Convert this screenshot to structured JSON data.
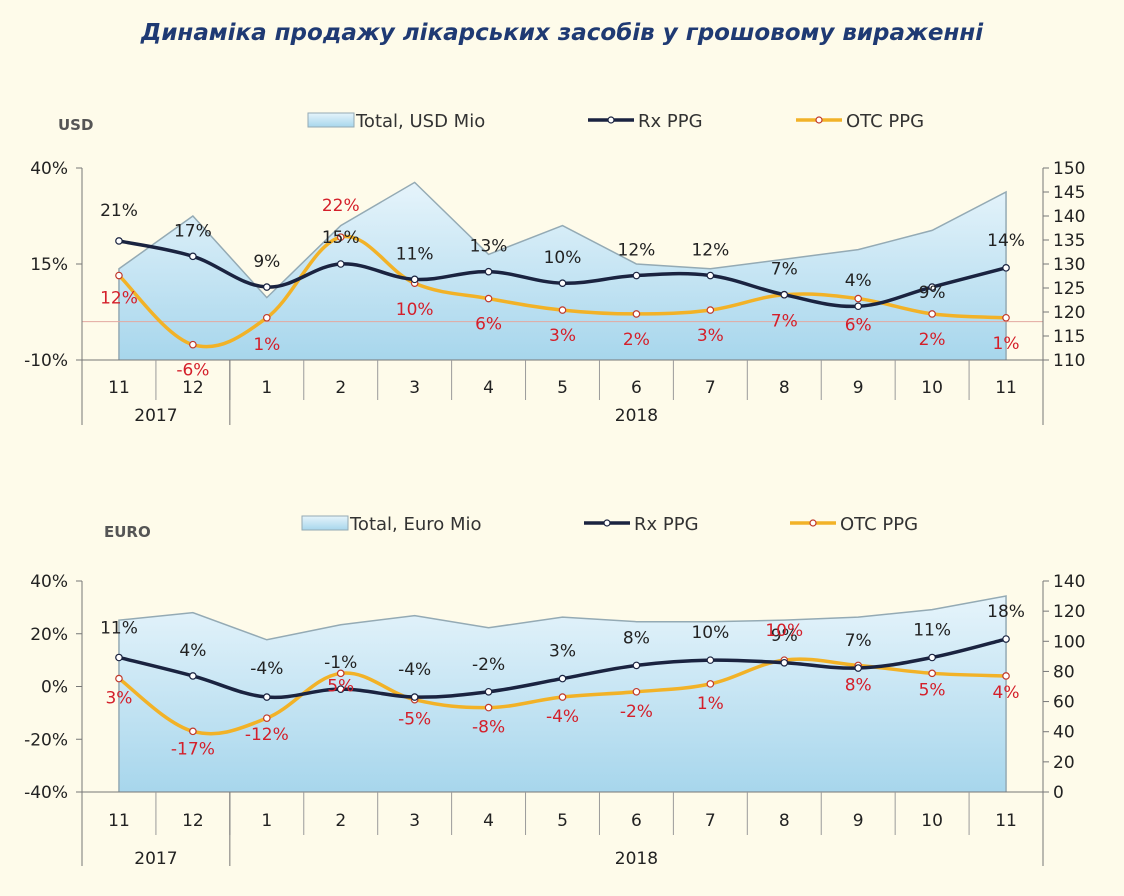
{
  "title": "Динаміка продажу лікарських засобів у грошовому вираженні",
  "colors": {
    "rx": "#1a2340",
    "otc": "#f2b227",
    "area_fill_top": "#e6f4fb",
    "area_fill_bottom": "#a7d6ec",
    "area_stroke": "#94aab4",
    "rx_label": "#222222",
    "otc_label": "#d41f2a"
  },
  "chart_data": [
    {
      "type": "area+line",
      "label": "USD",
      "legend_placement": "top",
      "legend": {
        "total": "Total, USD Mio",
        "rx": "Rx PPG",
        "otc": "OTC PPG"
      },
      "categories": [
        "11",
        "12",
        "1",
        "2",
        "3",
        "4",
        "5",
        "6",
        "7",
        "8",
        "9",
        "10",
        "11"
      ],
      "year_groups": [
        {
          "label": "2017",
          "span": 2
        },
        {
          "label": "2018",
          "span": 11
        }
      ],
      "y_left": {
        "range": [
          -10,
          40
        ],
        "ticks": [
          "40%",
          "15%",
          "-10%"
        ],
        "tick_values": [
          40,
          15,
          -10
        ]
      },
      "y_right": {
        "range": [
          110,
          150
        ],
        "ticks": [
          "150",
          "145",
          "140",
          "135",
          "130",
          "125",
          "120",
          "115",
          "110"
        ],
        "tick_values": [
          150,
          145,
          140,
          135,
          130,
          125,
          120,
          115,
          110
        ]
      },
      "total": [
        129,
        140,
        123,
        138,
        147,
        132,
        138,
        130,
        129,
        131,
        133,
        137,
        145
      ],
      "rx": [
        21,
        17,
        9,
        15,
        11,
        13,
        10,
        12,
        12,
        7,
        4,
        9,
        14
      ],
      "rx_labels": [
        "21%",
        "17%",
        "9%",
        "15%",
        "11%",
        "13%",
        "10%",
        "12%",
        "12%",
        "7%",
        "4%",
        "9%",
        "14%"
      ],
      "otc": [
        12,
        -6,
        1,
        22,
        10,
        6,
        3,
        2,
        3,
        7,
        6,
        2,
        1
      ],
      "otc_labels": [
        "12%",
        "-6%",
        "1%",
        "22%",
        "10%",
        "6%",
        "3%",
        "2%",
        "3%",
        "7%",
        "6%",
        "2%",
        "1%"
      ]
    },
    {
      "type": "area+line",
      "label": "EURO",
      "legend_placement": "top",
      "legend": {
        "total": "Total, Euro Mio",
        "rx": "Rx PPG",
        "otc": "OTC PPG"
      },
      "categories": [
        "11",
        "12",
        "1",
        "2",
        "3",
        "4",
        "5",
        "6",
        "7",
        "8",
        "9",
        "10",
        "11"
      ],
      "year_groups": [
        {
          "label": "2017",
          "span": 2
        },
        {
          "label": "2018",
          "span": 11
        }
      ],
      "y_left": {
        "range": [
          -40,
          40
        ],
        "ticks": [
          "40%",
          "20%",
          "0%",
          "-20%",
          "-40%"
        ],
        "tick_values": [
          40,
          20,
          0,
          -20,
          -40
        ]
      },
      "y_right": {
        "range": [
          0,
          140
        ],
        "ticks": [
          "140",
          "120",
          "100",
          "80",
          "60",
          "40",
          "20",
          "0"
        ],
        "tick_values": [
          140,
          120,
          100,
          80,
          60,
          40,
          20,
          0
        ]
      },
      "total": [
        114,
        119,
        101,
        111,
        117,
        109,
        116,
        113,
        113,
        114,
        116,
        121,
        130
      ],
      "rx": [
        11,
        4,
        -4,
        -1,
        -4,
        -2,
        3,
        8,
        10,
        9,
        7,
        11,
        18
      ],
      "rx_labels": [
        "11%",
        "4%",
        "-4%",
        "-1%",
        "-4%",
        "-2%",
        "3%",
        "8%",
        "10%",
        "9%",
        "7%",
        "11%",
        "18%"
      ],
      "otc": [
        3,
        -17,
        -12,
        5,
        -5,
        -8,
        -4,
        -2,
        1,
        10,
        8,
        5,
        4
      ],
      "otc_labels": [
        "3%",
        "-17%",
        "-12%",
        "5%",
        "-5%",
        "-8%",
        "-4%",
        "-2%",
        "1%",
        "10%",
        "8%",
        "5%",
        "4%"
      ]
    }
  ]
}
